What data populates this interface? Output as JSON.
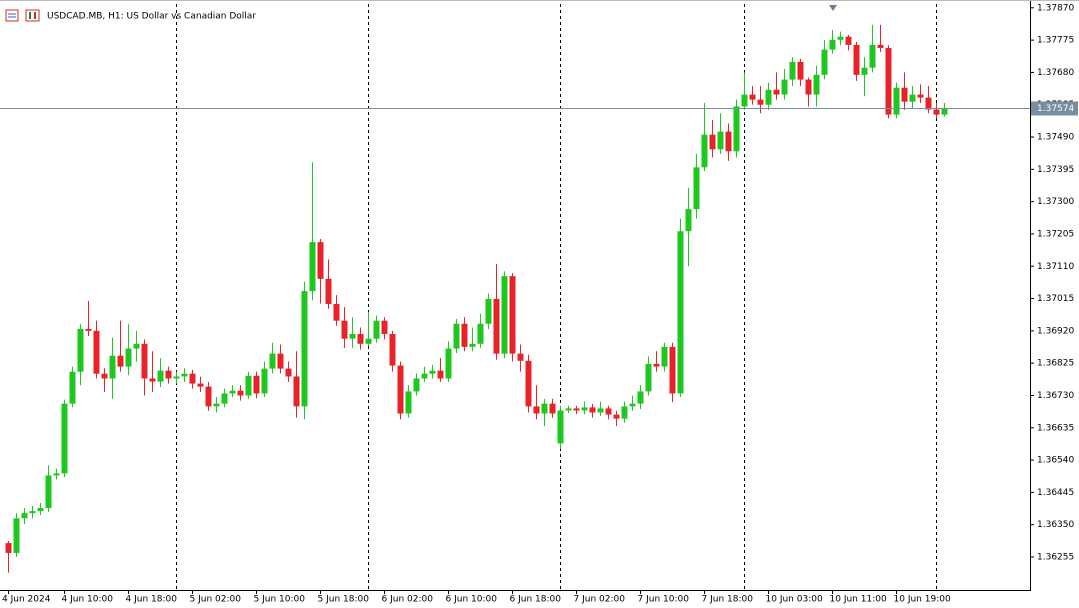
{
  "chart_data": {
    "type": "candlestick",
    "title": "USDCAD.MB, H1:  US Dollar vs Canadian Dollar",
    "categories": [
      "4 Jun 2024",
      null,
      null,
      null,
      null,
      null,
      null,
      "4 Jun 10:00",
      null,
      null,
      null,
      null,
      null,
      null,
      null,
      "4 Jun 18:00",
      null,
      null,
      null,
      null,
      null,
      null,
      null,
      "5 Jun 02:00",
      null,
      null,
      null,
      null,
      null,
      null,
      null,
      "5 Jun 10:00",
      null,
      null,
      null,
      null,
      null,
      null,
      null,
      "5 Jun 18:00",
      null,
      null,
      null,
      null,
      null,
      null,
      null,
      "6 Jun 02:00",
      null,
      null,
      null,
      null,
      null,
      null,
      null,
      "6 Jun 10:00",
      null,
      null,
      null,
      null,
      null,
      null,
      null,
      "6 Jun 18:00",
      null,
      null,
      null,
      null,
      null,
      null,
      null,
      "7 Jun 02:00",
      null,
      null,
      null,
      null,
      null,
      null,
      null,
      "7 Jun 10:00",
      null,
      null,
      null,
      null,
      null,
      null,
      null,
      "7 Jun 18:00",
      null,
      null,
      null,
      null,
      null,
      null,
      null,
      "10 Jun 03:00",
      null,
      null,
      null,
      null,
      null,
      null,
      null,
      "10 Jun 11:00",
      null,
      null,
      null,
      null,
      null,
      null,
      null,
      "10 Jun 19:00",
      null,
      null,
      null,
      null,
      null,
      null
    ],
    "open": [
      1.36296,
      1.36267,
      1.36369,
      1.36384,
      1.3639,
      1.36399,
      1.36495,
      1.36501,
      1.36706,
      1.368,
      1.36926,
      1.3692,
      1.36794,
      1.3678,
      1.36847,
      1.36815,
      1.36868,
      1.36882,
      1.3678,
      1.36771,
      1.36803,
      1.3678,
      1.36786,
      1.36794,
      1.36765,
      1.36756,
      1.36698,
      1.36706,
      1.36736,
      1.36744,
      1.3673,
      1.36788,
      1.36736,
      1.36809,
      1.36853,
      1.36809,
      1.36786,
      1.36698,
      1.37037,
      1.37181,
      1.37073,
      1.36999,
      1.3695,
      1.36897,
      1.36911,
      1.36882,
      1.36897,
      1.3695,
      1.36911,
      1.36818,
      1.36677,
      1.36742,
      1.3678,
      1.36794,
      1.36803,
      1.3678,
      1.36868,
      1.36941,
      1.36873,
      1.36882,
      1.36941,
      1.37014,
      1.36853,
      1.37081,
      1.36853,
      1.36832,
      1.36698,
      1.36677,
      1.36706,
      1.36589,
      1.36686,
      1.36692,
      1.36686,
      1.36695,
      1.3668,
      1.36692,
      1.36674,
      1.36662,
      1.36698,
      1.36706,
      1.36742,
      1.36823,
      1.36815,
      1.36873,
      1.36736,
      1.37213,
      1.37278,
      1.37401,
      1.37497,
      1.37454,
      1.37506,
      1.37448,
      1.3758,
      1.37615,
      1.376,
      1.37585,
      1.37629,
      1.37615,
      1.37659,
      1.37711,
      1.37659,
      1.37615,
      1.37673,
      1.37747,
      1.37776,
      1.37785,
      1.37761,
      1.37673,
      1.37694,
      1.37761,
      1.37752,
      1.37556,
      1.37635,
      1.37594,
      1.37615,
      1.37606,
      1.37571,
      1.37556
    ],
    "high": [
      1.36302,
      1.36384,
      1.36399,
      1.36405,
      1.36414,
      1.36525,
      1.36515,
      1.36718,
      1.36815,
      1.3694,
      1.37008,
      1.3695,
      1.3681,
      1.369,
      1.3695,
      1.3694,
      1.3692,
      1.36895,
      1.3686,
      1.3684,
      1.36815,
      1.368,
      1.3681,
      1.36805,
      1.36785,
      1.3677,
      1.36725,
      1.3675,
      1.3676,
      1.3676,
      1.368,
      1.368,
      1.3683,
      1.36885,
      1.3688,
      1.3683,
      1.3686,
      1.37065,
      1.37416,
      1.3719,
      1.3713,
      1.37025,
      1.3699,
      1.3696,
      1.3693,
      1.36975,
      1.36965,
      1.3696,
      1.3692,
      1.3683,
      1.3676,
      1.36795,
      1.36815,
      1.3682,
      1.3684,
      1.3689,
      1.36955,
      1.3696,
      1.3693,
      1.3697,
      1.3703,
      1.37117,
      1.37095,
      1.3709,
      1.3688,
      1.3685,
      1.3676,
      1.3672,
      1.3672,
      1.367,
      1.367,
      1.367,
      1.36712,
      1.36705,
      1.36712,
      1.367,
      1.36685,
      1.36712,
      1.3673,
      1.3676,
      1.36845,
      1.3686,
      1.36885,
      1.36885,
      1.3725,
      1.3734,
      1.3744,
      1.3759,
      1.3754,
      1.3756,
      1.3753,
      1.376,
      1.3768,
      1.3764,
      1.3764,
      1.3765,
      1.3768,
      1.3769,
      1.37725,
      1.3772,
      1.37665,
      1.377,
      1.37775,
      1.37805,
      1.378,
      1.3779,
      1.3777,
      1.37725,
      1.3782,
      1.3782,
      1.3776,
      1.3765,
      1.3768,
      1.3764,
      1.37645,
      1.3764,
      1.3759,
      1.3759
    ],
    "low": [
      1.36209,
      1.36255,
      1.36352,
      1.36369,
      1.36378,
      1.36387,
      1.36483,
      1.3649,
      1.36695,
      1.3676,
      1.36905,
      1.3678,
      1.3674,
      1.3672,
      1.368,
      1.3679,
      1.3683,
      1.3673,
      1.3674,
      1.36755,
      1.36765,
      1.36765,
      1.3677,
      1.3675,
      1.3674,
      1.36685,
      1.3668,
      1.36695,
      1.36725,
      1.36715,
      1.3672,
      1.36722,
      1.36725,
      1.36795,
      1.36795,
      1.3677,
      1.36665,
      1.3666,
      1.3701,
      1.37,
      1.36985,
      1.36935,
      1.3687,
      1.3687,
      1.36865,
      1.36875,
      1.36885,
      1.36895,
      1.368,
      1.3666,
      1.36665,
      1.3673,
      1.3677,
      1.3678,
      1.3677,
      1.3677,
      1.36855,
      1.3686,
      1.3686,
      1.3687,
      1.36925,
      1.36835,
      1.3684,
      1.3683,
      1.368,
      1.3668,
      1.3666,
      1.3664,
      1.36665,
      1.36573,
      1.36678,
      1.36675,
      1.36675,
      1.36665,
      1.3667,
      1.3666,
      1.3664,
      1.3665,
      1.36685,
      1.3669,
      1.3673,
      1.368,
      1.368,
      1.3671,
      1.36725,
      1.3711,
      1.3725,
      1.3739,
      1.3743,
      1.3744,
      1.3742,
      1.3743,
      1.3757,
      1.37585,
      1.3756,
      1.3757,
      1.376,
      1.376,
      1.3764,
      1.3764,
      1.3758,
      1.3758,
      1.3766,
      1.37735,
      1.3776,
      1.37745,
      1.37655,
      1.3761,
      1.3768,
      1.3774,
      1.37545,
      1.37545,
      1.3757,
      1.37575,
      1.3759,
      1.3756,
      1.37545,
      1.3755
    ],
    "close": [
      1.36267,
      1.36369,
      1.36384,
      1.3639,
      1.36399,
      1.36495,
      1.36501,
      1.36706,
      1.368,
      1.36926,
      1.3692,
      1.36794,
      1.3678,
      1.36847,
      1.36815,
      1.36868,
      1.36882,
      1.3678,
      1.36771,
      1.36803,
      1.3678,
      1.36786,
      1.36794,
      1.36765,
      1.36756,
      1.36698,
      1.36706,
      1.36736,
      1.36744,
      1.3673,
      1.36788,
      1.36736,
      1.36809,
      1.36853,
      1.36809,
      1.36786,
      1.36698,
      1.37037,
      1.37181,
      1.37073,
      1.36999,
      1.3695,
      1.36897,
      1.36911,
      1.36882,
      1.36897,
      1.3695,
      1.36911,
      1.36818,
      1.36677,
      1.36742,
      1.3678,
      1.36794,
      1.36803,
      1.3678,
      1.36868,
      1.36941,
      1.36873,
      1.36882,
      1.36941,
      1.37014,
      1.36853,
      1.37081,
      1.36853,
      1.36832,
      1.36698,
      1.36677,
      1.36706,
      1.36677,
      1.36686,
      1.36692,
      1.36686,
      1.36695,
      1.3668,
      1.36692,
      1.36674,
      1.36662,
      1.36698,
      1.36706,
      1.36742,
      1.36823,
      1.36815,
      1.36873,
      1.36736,
      1.37213,
      1.37278,
      1.37401,
      1.37497,
      1.37454,
      1.37506,
      1.37448,
      1.3758,
      1.37615,
      1.376,
      1.37585,
      1.37629,
      1.37615,
      1.37659,
      1.37711,
      1.37659,
      1.37615,
      1.37673,
      1.37747,
      1.37776,
      1.37785,
      1.37761,
      1.37673,
      1.37694,
      1.37761,
      1.37752,
      1.37556,
      1.37635,
      1.37594,
      1.37615,
      1.37606,
      1.37571,
      1.37556,
      1.37574
    ],
    "up_color": "#1ec81e",
    "down_color": "#e8222a",
    "last_price": 1.37574,
    "ylim": [
      1.36158,
      1.37893
    ],
    "yticks": [
      {
        "value": 1.3787,
        "label": "1.37870"
      },
      1.37775,
      {
        "value": 1.3768,
        "label": "1.37680"
      },
      1.37585,
      {
        "value": 1.3749,
        "label": "1.37490"
      },
      1.37395,
      {
        "value": 1.373,
        "label": "1.37300"
      },
      1.37205,
      {
        "value": 1.3711,
        "label": "1.37110"
      },
      1.37015,
      {
        "value": 1.3692,
        "label": "1.36920"
      },
      1.36825,
      {
        "value": 1.3673,
        "label": "1.36730"
      },
      1.36635,
      {
        "value": 1.3654,
        "label": "1.36540"
      },
      1.36445,
      {
        "value": 1.3635,
        "label": "1.36350"
      },
      1.36255
    ]
  }
}
